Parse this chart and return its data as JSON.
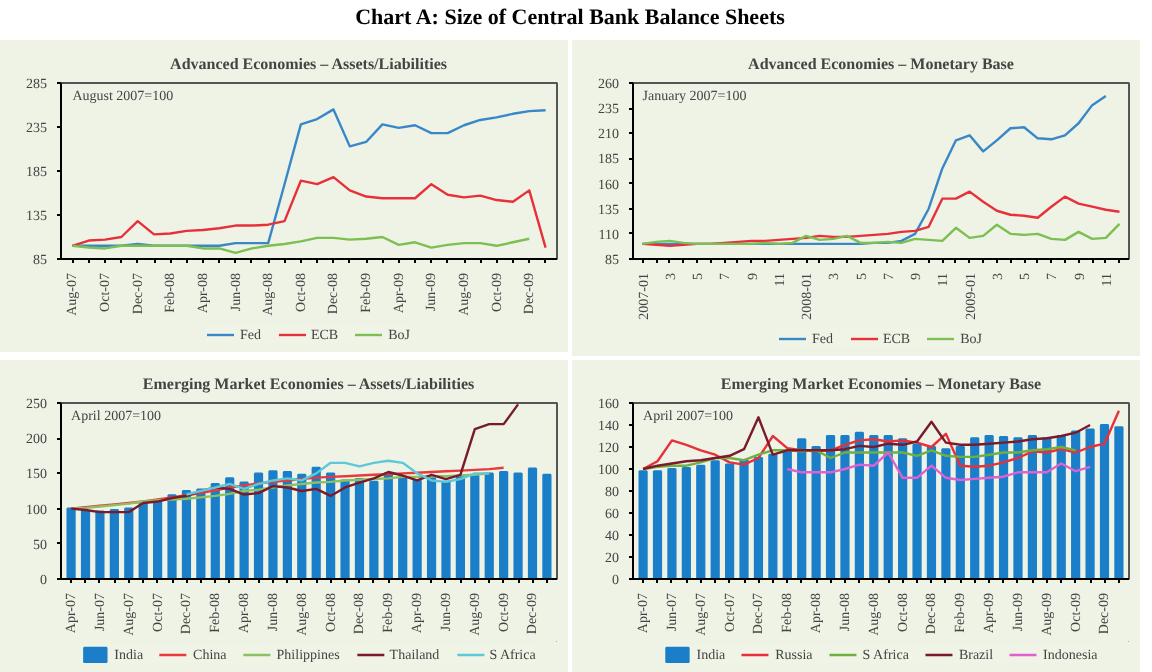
{
  "chart_data": [
    {
      "type": "other",
      "title": "Chart A: Size of Central Bank Balance Sheets"
    },
    {
      "type": "line",
      "title": "Advanced Economies – Assets/Liabilities",
      "annotations": [
        "August 2007=100"
      ],
      "legend": "bottom",
      "ylim": [
        85,
        285
      ],
      "yticks": [
        85,
        135,
        185,
        235,
        285
      ],
      "categories": [
        "Aug-07",
        null,
        "Oct-07",
        null,
        "Dec-07",
        null,
        "Feb-08",
        null,
        "Apr-08",
        null,
        "Jun-08",
        null,
        "Aug-08",
        null,
        "Oct-08",
        null,
        "Dec-08",
        null,
        "Feb-09",
        null,
        "Apr-09",
        null,
        "Jun-09",
        null,
        "Aug-09",
        null,
        "Oct-09",
        null,
        "Dec-09",
        null
      ],
      "series": [
        {
          "name": "Fed",
          "color": "#3a87c8",
          "values": [
            100,
            100,
            100,
            100,
            102,
            100,
            100,
            100,
            100,
            100,
            103,
            103,
            103,
            170,
            238,
            244,
            255,
            213,
            218,
            238,
            234,
            237,
            228,
            228,
            237,
            243,
            246,
            250,
            253,
            254
          ]
        },
        {
          "name": "ECB",
          "color": "#e8303a",
          "values": [
            100,
            106,
            107,
            110,
            128,
            113,
            114,
            117,
            118,
            120,
            123,
            123,
            124,
            128,
            174,
            170,
            178,
            163,
            156,
            154,
            154,
            154,
            170,
            158,
            155,
            157,
            152,
            150,
            163,
            98
          ]
        },
        {
          "name": "BoJ",
          "color": "#7cbf52",
          "values": [
            100,
            98,
            97,
            100,
            100,
            100,
            100,
            100,
            97,
            97,
            92,
            97,
            100,
            102,
            105,
            109,
            109,
            107,
            108,
            110,
            101,
            104,
            98,
            101,
            103,
            103,
            100,
            104,
            108,
            null
          ]
        }
      ]
    },
    {
      "type": "line",
      "title": "Advanced Economies – Monetary Base",
      "annotations": [
        "January 2007=100"
      ],
      "legend": "bottom",
      "ylim": [
        85,
        260
      ],
      "yticks": [
        85,
        110,
        135,
        160,
        185,
        210,
        235,
        260
      ],
      "categories": [
        "2007-01",
        null,
        "3",
        null,
        "5",
        null,
        "7",
        null,
        "9",
        null,
        "11",
        null,
        "2008-01",
        null,
        "3",
        null,
        "5",
        null,
        "7",
        null,
        "9",
        null,
        "11",
        null,
        "2009-01",
        null,
        "3",
        null,
        "5",
        null,
        "7",
        null,
        "9",
        null,
        "11",
        null
      ],
      "series": [
        {
          "name": "Fed",
          "color": "#3a87c8",
          "values": [
            100,
            100,
            100,
            100,
            100,
            100,
            100,
            100,
            100,
            100,
            100,
            100,
            100,
            100,
            100,
            100,
            100,
            101,
            101,
            103,
            110,
            135,
            175,
            203,
            208,
            192,
            203,
            215,
            216,
            205,
            204,
            208,
            220,
            238,
            247,
            null
          ]
        },
        {
          "name": "ECB",
          "color": "#e8303a",
          "values": [
            100,
            99,
            98,
            99,
            100,
            100,
            101,
            102,
            103,
            103,
            104,
            105,
            106,
            108,
            107,
            107,
            108,
            109,
            110,
            112,
            113,
            117,
            145,
            145,
            152,
            142,
            133,
            129,
            128,
            126,
            137,
            147,
            140,
            137,
            134,
            132
          ]
        },
        {
          "name": "BoJ",
          "color": "#7cbf52",
          "values": [
            100,
            102,
            103,
            101,
            100,
            100,
            100,
            100,
            100,
            101,
            100,
            101,
            108,
            104,
            105,
            108,
            101,
            101,
            102,
            101,
            105,
            104,
            103,
            116,
            106,
            108,
            119,
            110,
            109,
            110,
            105,
            104,
            112,
            105,
            106,
            120
          ]
        }
      ]
    },
    {
      "type": "line",
      "title": "Emerging Market Economies – Assets/Liabilities",
      "annotations": [
        "April 2007=100"
      ],
      "legend": "bottom",
      "ylim": [
        0,
        250
      ],
      "yticks": [
        0,
        50,
        100,
        150,
        200,
        250
      ],
      "categories": [
        "Apr-07",
        null,
        "Jun-07",
        null,
        "Aug-07",
        null,
        "Oct-07",
        null,
        "Dec-07",
        null,
        "Feb-08",
        null,
        "Apr-08",
        null,
        "Jun-08",
        null,
        "Aug-08",
        null,
        "Oct-08",
        null,
        "Dec-08",
        null,
        "Feb-09",
        null,
        "Apr-09",
        null,
        "Jun-09",
        null,
        "Aug-09",
        null,
        "Oct-09",
        null,
        "Dec-09",
        null
      ],
      "series": [
        {
          "name": "India",
          "type": "bar",
          "color": "#1a7fc8",
          "values": [
            100,
            97,
            96,
            98,
            100,
            107,
            110,
            119,
            125,
            127,
            135,
            143,
            137,
            150,
            153,
            152,
            148,
            158,
            150,
            140,
            142,
            138,
            150,
            145,
            140,
            143,
            138,
            145,
            147,
            150,
            152,
            150,
            157,
            148
          ]
        },
        {
          "name": "China",
          "color": "#e83a3a",
          "values": [
            100,
            102,
            104,
            106,
            108,
            110,
            113,
            116,
            119,
            122,
            126,
            130,
            133,
            136,
            138,
            140,
            142,
            144,
            145,
            146,
            147,
            148,
            149,
            150,
            151,
            152,
            153,
            154,
            155,
            156,
            158,
            null,
            null,
            null
          ]
        },
        {
          "name": "Philippines",
          "color": "#8cc060",
          "values": [
            100,
            101,
            103,
            105,
            107,
            110,
            112,
            113,
            114,
            116,
            118,
            121,
            125,
            127,
            130,
            133,
            135,
            137,
            138,
            140,
            141,
            142,
            143,
            145,
            145,
            146,
            146,
            147,
            148,
            150,
            null,
            null,
            null,
            null
          ]
        },
        {
          "name": "Thailand",
          "color": "#7a1a2a",
          "values": [
            100,
            98,
            95,
            95,
            95,
            108,
            110,
            115,
            118,
            125,
            130,
            128,
            120,
            122,
            132,
            130,
            125,
            128,
            118,
            130,
            137,
            143,
            152,
            147,
            140,
            148,
            142,
            148,
            213,
            220,
            220,
            248,
            null,
            null
          ]
        },
        {
          "name": "S Africa",
          "color": "#5cc8d8",
          "values": [
            null,
            null,
            null,
            null,
            null,
            null,
            null,
            null,
            120,
            125,
            130,
            135,
            128,
            135,
            140,
            143,
            140,
            150,
            165,
            165,
            160,
            165,
            168,
            165,
            150,
            140,
            138,
            142,
            150,
            150,
            null,
            null,
            null,
            null
          ]
        }
      ]
    },
    {
      "type": "line",
      "title": "Emerging Market Economies – Monetary Base",
      "annotations": [
        "April 2007=100"
      ],
      "legend": "bottom",
      "ylim": [
        0,
        160
      ],
      "yticks": [
        0,
        20,
        40,
        60,
        80,
        100,
        120,
        140,
        160
      ],
      "categories": [
        "Apr-07",
        null,
        "Jun-07",
        null,
        "Aug-07",
        null,
        "Oct-07",
        null,
        "Dec-07",
        null,
        "Feb-08",
        null,
        "Apr-08",
        null,
        "Jun-08",
        null,
        "Aug-08",
        null,
        "Oct-08",
        null,
        "Dec-08",
        null,
        "Feb-09",
        null,
        "Apr-09",
        null,
        "Jun-09",
        null,
        "Aug-09",
        null,
        "Oct-09",
        null,
        "Dec-09",
        null
      ],
      "series": [
        {
          "name": "India",
          "type": "bar",
          "color": "#1a7fc8",
          "values": [
            98,
            98,
            100,
            101,
            103,
            107,
            104,
            108,
            110,
            113,
            117,
            127,
            120,
            130,
            130,
            133,
            130,
            130,
            127,
            122,
            120,
            118,
            120,
            128,
            130,
            129,
            128,
            130,
            128,
            130,
            134,
            136,
            140,
            138
          ]
        },
        {
          "name": "Russia",
          "color": "#e8303a",
          "values": [
            100,
            107,
            126,
            122,
            117,
            113,
            106,
            104,
            110,
            130,
            119,
            117,
            116,
            117,
            122,
            126,
            127,
            125,
            126,
            124,
            120,
            132,
            103,
            102,
            103,
            106,
            110,
            116,
            115,
            118,
            115,
            120,
            123,
            153
          ]
        },
        {
          "name": "S Africa",
          "color": "#70b040",
          "values": [
            100,
            102,
            103,
            103,
            106,
            110,
            110,
            108,
            113,
            117,
            117,
            116,
            117,
            110,
            115,
            115,
            115,
            115,
            115,
            112,
            117,
            112,
            111,
            111,
            113,
            115,
            115,
            117,
            118,
            120,
            117,
            null,
            null,
            null
          ]
        },
        {
          "name": "Brazil",
          "color": "#7a1a2a",
          "values": [
            100,
            103,
            105,
            107,
            108,
            110,
            112,
            118,
            147,
            113,
            117,
            117,
            117,
            117,
            118,
            121,
            120,
            123,
            122,
            125,
            143,
            124,
            122,
            122,
            123,
            124,
            125,
            127,
            128,
            130,
            133,
            140,
            null,
            null
          ]
        },
        {
          "name": "Indonesia",
          "color": "#e060d0",
          "values": [
            null,
            null,
            null,
            null,
            null,
            null,
            null,
            null,
            null,
            null,
            100,
            97,
            97,
            97,
            100,
            104,
            103,
            115,
            92,
            92,
            103,
            92,
            90,
            91,
            92,
            93,
            97,
            97,
            97,
            105,
            98,
            102,
            null,
            null
          ]
        }
      ]
    }
  ]
}
